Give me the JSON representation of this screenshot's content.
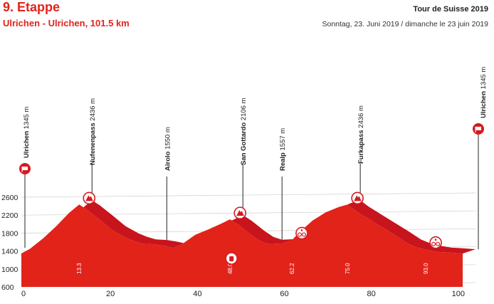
{
  "header": {
    "stage_title": "9. Etappe",
    "route": "Ulrichen - Ulrichen, 101.5 km",
    "race": "Tour de Suisse 2019",
    "date": "Sonntag, 23. Juni 2019 / dimanche le 23 juin 2019"
  },
  "colors": {
    "profile_fill": "#e2231a",
    "profile_side": "#8b0d14",
    "profile_top": "#c8141c",
    "marker_red": "#d71920",
    "grid": "#cfcfcf",
    "text": "#222222"
  },
  "chart_data": {
    "type": "area",
    "title": "",
    "xlabel": "",
    "ylabel": "",
    "xlim": [
      0,
      101.5
    ],
    "ylim": [
      600,
      2600
    ],
    "x_ticks": [
      0,
      20,
      40,
      60,
      80,
      100
    ],
    "y_ticks": [
      600,
      1000,
      1400,
      1800,
      2200,
      2600
    ],
    "grid": true,
    "series": [
      {
        "x": [
          0,
          2,
          5,
          8,
          11,
          13.3,
          15,
          18,
          21,
          24,
          26,
          28,
          30.5,
          32.5,
          35,
          37,
          40,
          43,
          46,
          48.0,
          50,
          53,
          55,
          57,
          60,
          62.2,
          64,
          67,
          70,
          73,
          75.0,
          77,
          80,
          83,
          86,
          89,
          91,
          93.0,
          96,
          98,
          100,
          101.5
        ],
        "y": [
          1345,
          1450,
          1680,
          1950,
          2250,
          2436,
          2330,
          2100,
          1860,
          1700,
          1620,
          1565,
          1550,
          1520,
          1470,
          1555,
          1760,
          1880,
          2010,
          2106,
          1980,
          1750,
          1620,
          1557,
          1570,
          1640,
          1820,
          2080,
          2260,
          2380,
          2436,
          2290,
          2110,
          1930,
          1750,
          1560,
          1480,
          1430,
          1380,
          1370,
          1355,
          1345
        ]
      }
    ],
    "km_markers": [
      {
        "km": 13.3,
        "label": "13.3"
      },
      {
        "km": 48.0,
        "label": "48.0"
      },
      {
        "km": 62.2,
        "label": "62.2"
      },
      {
        "km": 75.0,
        "label": "75.0"
      },
      {
        "km": 93.0,
        "label": "93.0"
      }
    ],
    "places": [
      {
        "km": 0,
        "alt": 1345,
        "name": "Ulrichen",
        "alt_label": "1345 m",
        "marker": "start"
      },
      {
        "km": 13.3,
        "alt": 2436,
        "name": "Nufenenpass",
        "alt_label": "2436 m",
        "marker": "climb"
      },
      {
        "km": 30.5,
        "alt": 1550,
        "name": "Airolo",
        "alt_label": "1550 m",
        "marker": "none"
      },
      {
        "km": 48.0,
        "alt": 2106,
        "name": "San Gottardo",
        "alt_label": "2106 m",
        "marker": "climb"
      },
      {
        "km": 57.0,
        "alt": 1557,
        "name": "Realp",
        "alt_label": "1557 m",
        "marker": "none"
      },
      {
        "km": 75.0,
        "alt": 2436,
        "name": "Furkapass",
        "alt_label": "2436 m",
        "marker": "climb"
      },
      {
        "km": 101.5,
        "alt": 1345,
        "name": "Ulrichen",
        "alt_label": "1345 m",
        "marker": "finish"
      }
    ],
    "feed_zone_km": 48.0,
    "sprints": [
      {
        "km": 62.2
      },
      {
        "km": 93.0
      }
    ]
  }
}
